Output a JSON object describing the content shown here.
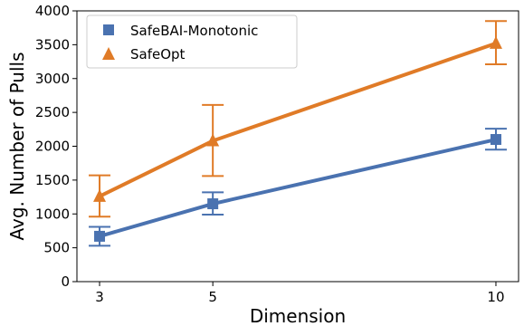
{
  "chart_data": {
    "type": "line",
    "xlabel": "Dimension",
    "ylabel": "Avg. Number of Pulls",
    "x": [
      3,
      5,
      10
    ],
    "xticks": [
      "3",
      "5",
      "10"
    ],
    "xlim": [
      2.6,
      10.4
    ],
    "ylim": [
      0,
      4000
    ],
    "yticks": [
      "0",
      "500",
      "1000",
      "1500",
      "2000",
      "2500",
      "3000",
      "3500",
      "4000"
    ],
    "grid": false,
    "legend_position": "top-left",
    "series": [
      {
        "name": "SafeBAI-Monotonic",
        "marker": "square",
        "color": "#4a72b0",
        "values": [
          670,
          1150,
          2100
        ],
        "error_low": [
          530,
          990,
          1950
        ],
        "error_high": [
          810,
          1320,
          2260
        ]
      },
      {
        "name": "SafeOpt",
        "marker": "triangle",
        "color": "#e07b27",
        "values": [
          1260,
          2080,
          3520
        ],
        "error_low": [
          960,
          1560,
          3210
        ],
        "error_high": [
          1570,
          2610,
          3850
        ]
      }
    ]
  }
}
